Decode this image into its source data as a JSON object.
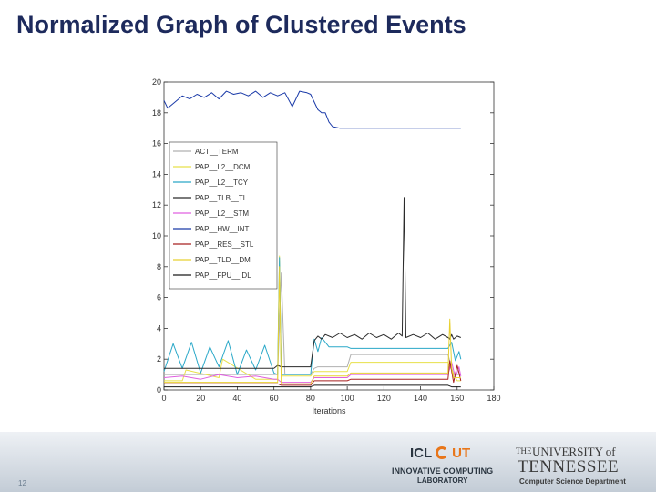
{
  "slide": {
    "title": "Normalized Graph of Clustered Events",
    "page_number": "12"
  },
  "footer": {
    "icl_logo_text": "ICL",
    "utk_mark_text": "UT",
    "icl_line1": "INNOVATIVE COMPUTING",
    "icl_line2": "LABORATORY",
    "ut_logo_the": "THE",
    "ut_logo_university": "UNIVERSITY of",
    "ut_logo_tennessee": "TENNESSEE",
    "ut_logo_department": "Computer Science Department"
  },
  "chart_data": {
    "type": "line",
    "xlabel": "Iterations",
    "ylabel": "",
    "xlim": [
      0,
      180
    ],
    "ylim": [
      0,
      20
    ],
    "xticks": [
      0,
      20,
      40,
      60,
      80,
      100,
      120,
      140,
      160,
      180
    ],
    "yticks": [
      0,
      2,
      4,
      6,
      8,
      10,
      12,
      14,
      16,
      18,
      20
    ],
    "legend_position": "upper-left",
    "grid": false,
    "series": [
      {
        "name": "ACT__TERM",
        "color": "#b0b0b0",
        "x": [
          0,
          40,
          62,
          64,
          66,
          80,
          82,
          84,
          100,
          102,
          155,
          158,
          162
        ],
        "y": [
          1.0,
          1.0,
          1.0,
          7.6,
          1.0,
          1.0,
          1.4,
          1.5,
          1.5,
          2.3,
          2.3,
          1.0,
          1.0
        ]
      },
      {
        "name": "PAP__L2__DCM",
        "color": "#e8e04a",
        "x": [
          0,
          10,
          12,
          30,
          32,
          50,
          62,
          63,
          64,
          80,
          82,
          100,
          102,
          155,
          160,
          162
        ],
        "y": [
          0.6,
          0.6,
          1.3,
          0.8,
          2.0,
          0.7,
          0.7,
          8.7,
          0.9,
          0.9,
          1.2,
          1.2,
          1.8,
          1.8,
          0.6,
          0.6
        ]
      },
      {
        "name": "PAP__L2__TCY",
        "color": "#2aa8c8",
        "x": [
          0,
          5,
          10,
          15,
          20,
          25,
          30,
          35,
          40,
          45,
          50,
          55,
          60,
          62,
          63,
          64,
          80,
          82,
          84,
          86,
          90,
          100,
          102,
          120,
          140,
          155,
          157,
          159,
          161,
          162
        ],
        "y": [
          1.2,
          3.0,
          1.4,
          3.1,
          1.1,
          2.8,
          1.5,
          3.2,
          1.0,
          2.6,
          1.3,
          2.9,
          1.1,
          1.0,
          8.6,
          1.0,
          1.0,
          3.3,
          2.5,
          3.4,
          2.8,
          2.8,
          2.7,
          2.7,
          2.7,
          2.7,
          3.1,
          1.9,
          2.5,
          2.0
        ]
      },
      {
        "name": "PAP__TLB__TL",
        "color": "#2a2a2a",
        "x": [
          0,
          20,
          40,
          60,
          62,
          64,
          80,
          82,
          84,
          86,
          88,
          92,
          96,
          100,
          104,
          108,
          112,
          116,
          120,
          124,
          128,
          130,
          131,
          132,
          136,
          140,
          144,
          148,
          152,
          155,
          156,
          157,
          158,
          160,
          162
        ],
        "y": [
          1.4,
          1.4,
          1.4,
          1.4,
          1.6,
          1.5,
          1.5,
          3.2,
          3.5,
          3.3,
          3.6,
          3.4,
          3.7,
          3.4,
          3.6,
          3.3,
          3.7,
          3.4,
          3.6,
          3.3,
          3.7,
          3.5,
          12.5,
          3.4,
          3.6,
          3.4,
          3.7,
          3.3,
          3.6,
          3.4,
          3.3,
          3.6,
          3.3,
          3.5,
          3.4
        ]
      },
      {
        "name": "PAP__L2__STM",
        "color": "#e060e0",
        "x": [
          0,
          10,
          20,
          30,
          40,
          50,
          60,
          62,
          64,
          80,
          82,
          100,
          102,
          155,
          157,
          159,
          161,
          162
        ],
        "y": [
          0.8,
          0.9,
          0.7,
          1.0,
          0.8,
          0.9,
          0.7,
          0.7,
          0.5,
          0.5,
          0.8,
          0.8,
          1.0,
          1.0,
          1.8,
          0.8,
          1.5,
          0.9
        ]
      },
      {
        "name": "PAP__HW__INT",
        "color": "#1a3aa8",
        "x": [
          0,
          2,
          6,
          10,
          14,
          18,
          22,
          26,
          30,
          34,
          38,
          42,
          46,
          50,
          54,
          58,
          62,
          66,
          70,
          74,
          78,
          80,
          84,
          86,
          88,
          90,
          92,
          96,
          100,
          110,
          120,
          130,
          140,
          150,
          160,
          162
        ],
        "y": [
          18.8,
          18.3,
          18.7,
          19.1,
          18.9,
          19.2,
          19.0,
          19.3,
          18.9,
          19.4,
          19.2,
          19.3,
          19.1,
          19.4,
          19.0,
          19.3,
          19.1,
          19.3,
          18.4,
          19.4,
          19.3,
          19.2,
          18.2,
          18.0,
          18.0,
          17.4,
          17.1,
          17.0,
          17.0,
          17.0,
          17.0,
          17.0,
          17.0,
          17.0,
          17.0,
          17.0
        ]
      },
      {
        "name": "PAP__RES__STL",
        "color": "#a82020",
        "x": [
          0,
          20,
          40,
          60,
          62,
          64,
          80,
          82,
          100,
          102,
          155,
          156,
          158,
          160,
          162
        ],
        "y": [
          0.4,
          0.4,
          0.4,
          0.4,
          0.4,
          0.3,
          0.3,
          0.6,
          0.6,
          0.7,
          0.7,
          1.9,
          0.5,
          1.6,
          0.6
        ]
      },
      {
        "name": "PAP__TLD__DM",
        "color": "#e8d030",
        "x": [
          0,
          20,
          40,
          60,
          62,
          63,
          64,
          80,
          82,
          100,
          102,
          155,
          156,
          157,
          158,
          162
        ],
        "y": [
          0.5,
          0.5,
          0.5,
          0.5,
          0.5,
          8.0,
          0.4,
          0.4,
          0.9,
          0.9,
          1.1,
          1.1,
          4.6,
          1.4,
          0.8,
          0.8
        ]
      },
      {
        "name": "PAP__FPU__IDL",
        "color": "#1a1a1a",
        "x": [
          0,
          20,
          40,
          60,
          62,
          64,
          80,
          82,
          100,
          102,
          155,
          157,
          162
        ],
        "y": [
          0.2,
          0.2,
          0.2,
          0.2,
          0.2,
          0.2,
          0.2,
          0.3,
          0.3,
          0.3,
          0.3,
          0.2,
          0.2
        ]
      }
    ]
  }
}
